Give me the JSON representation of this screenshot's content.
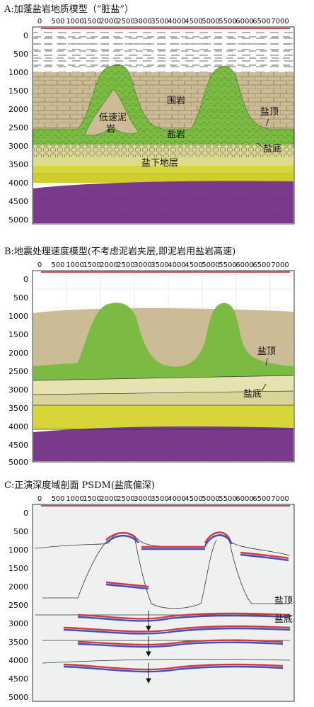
{
  "panels": [
    {
      "title": "A:加蓬盐岩地质模型（“脏盐”）",
      "labels": {
        "weiyan": "围岩",
        "disu": "低速泥",
        "disu2": "岩",
        "yanyan": "盐岩",
        "yanding": "盐顶",
        "yandi": "盐底",
        "yanxia": "盐下地层"
      }
    },
    {
      "title": "B:地震处理速度模型(不考虑泥岩夹层,即泥岩用盐岩高速)",
      "labels": {
        "yanding": "盐顶",
        "yandi": "盐底"
      }
    },
    {
      "title": "C:正演深度域剖面 PSDM(盐底偏深)",
      "labels": {
        "yanding": "盐顶",
        "yandi": "盐底"
      }
    }
  ],
  "axes": {
    "x_ticks": [
      "0",
      "500",
      "1000",
      "1500",
      "2000",
      "2500",
      "3000",
      "3500",
      "4000",
      "4500",
      "5000",
      "5500",
      "6000",
      "6500",
      "7000"
    ],
    "y_ticks": [
      "0",
      "500",
      "1000",
      "1500",
      "2000",
      "2500",
      "3000",
      "3500",
      "4000",
      "4500",
      "5000"
    ]
  },
  "colors": {
    "salt": "#7cbb43",
    "country_rock": "#cbbc96",
    "subsalt_yellow": "#d6d63a",
    "basement": "#7a3a8c",
    "light_layer": "#e6e3b0",
    "seismic_red": "#d43a3a",
    "seismic_blue": "#3a52c4"
  }
}
